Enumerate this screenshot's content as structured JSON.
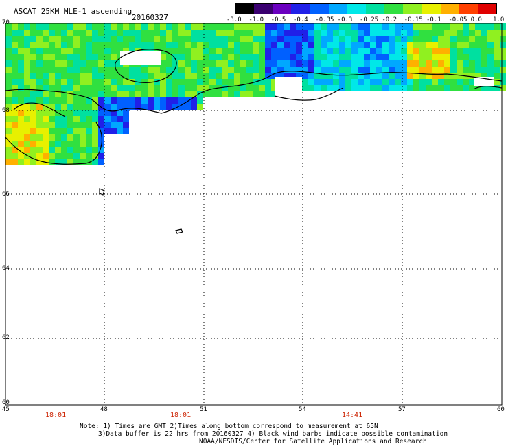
{
  "header": {
    "title": "ASCAT 25KM MLE-1 ascending",
    "date": "20160327"
  },
  "colorbar": {
    "labels": [
      "-3.0",
      "-1.0",
      "-0.5",
      "-0.4",
      "-0.35",
      "-0.3",
      "-0.25",
      "-0.2",
      "-0.15",
      "-0.1",
      "-0.05",
      "0.0",
      "1.0"
    ],
    "colors": [
      "#000000",
      "#3a0070",
      "#6a00c0",
      "#2020e8",
      "#0060ff",
      "#00a8ff",
      "#00e8e8",
      "#00e0a0",
      "#30e040",
      "#90f020",
      "#e8f000",
      "#ffb000",
      "#ff4000",
      "#e00000"
    ]
  },
  "axes": {
    "lat_labels": [
      "70",
      "68",
      "66",
      "64",
      "62",
      "60"
    ],
    "lon_labels": [
      "45",
      "48",
      "51",
      "54",
      "57",
      "60"
    ],
    "lat_range": [
      60,
      70
    ],
    "lon_range": [
      45,
      60
    ]
  },
  "times": [
    "18:01",
    "18:01",
    "14:41"
  ],
  "notes": {
    "line1": "Note: 1) Times are GMT 2)Times along bottom correspond to measurement at 65N",
    "line2": "3)Data buffer is 22 hrs from 20160327 4) Black wind barbs indicate possible contamination",
    "line3": "NOAA/NESDIS/Center for Satellite Applications and Research"
  }
}
